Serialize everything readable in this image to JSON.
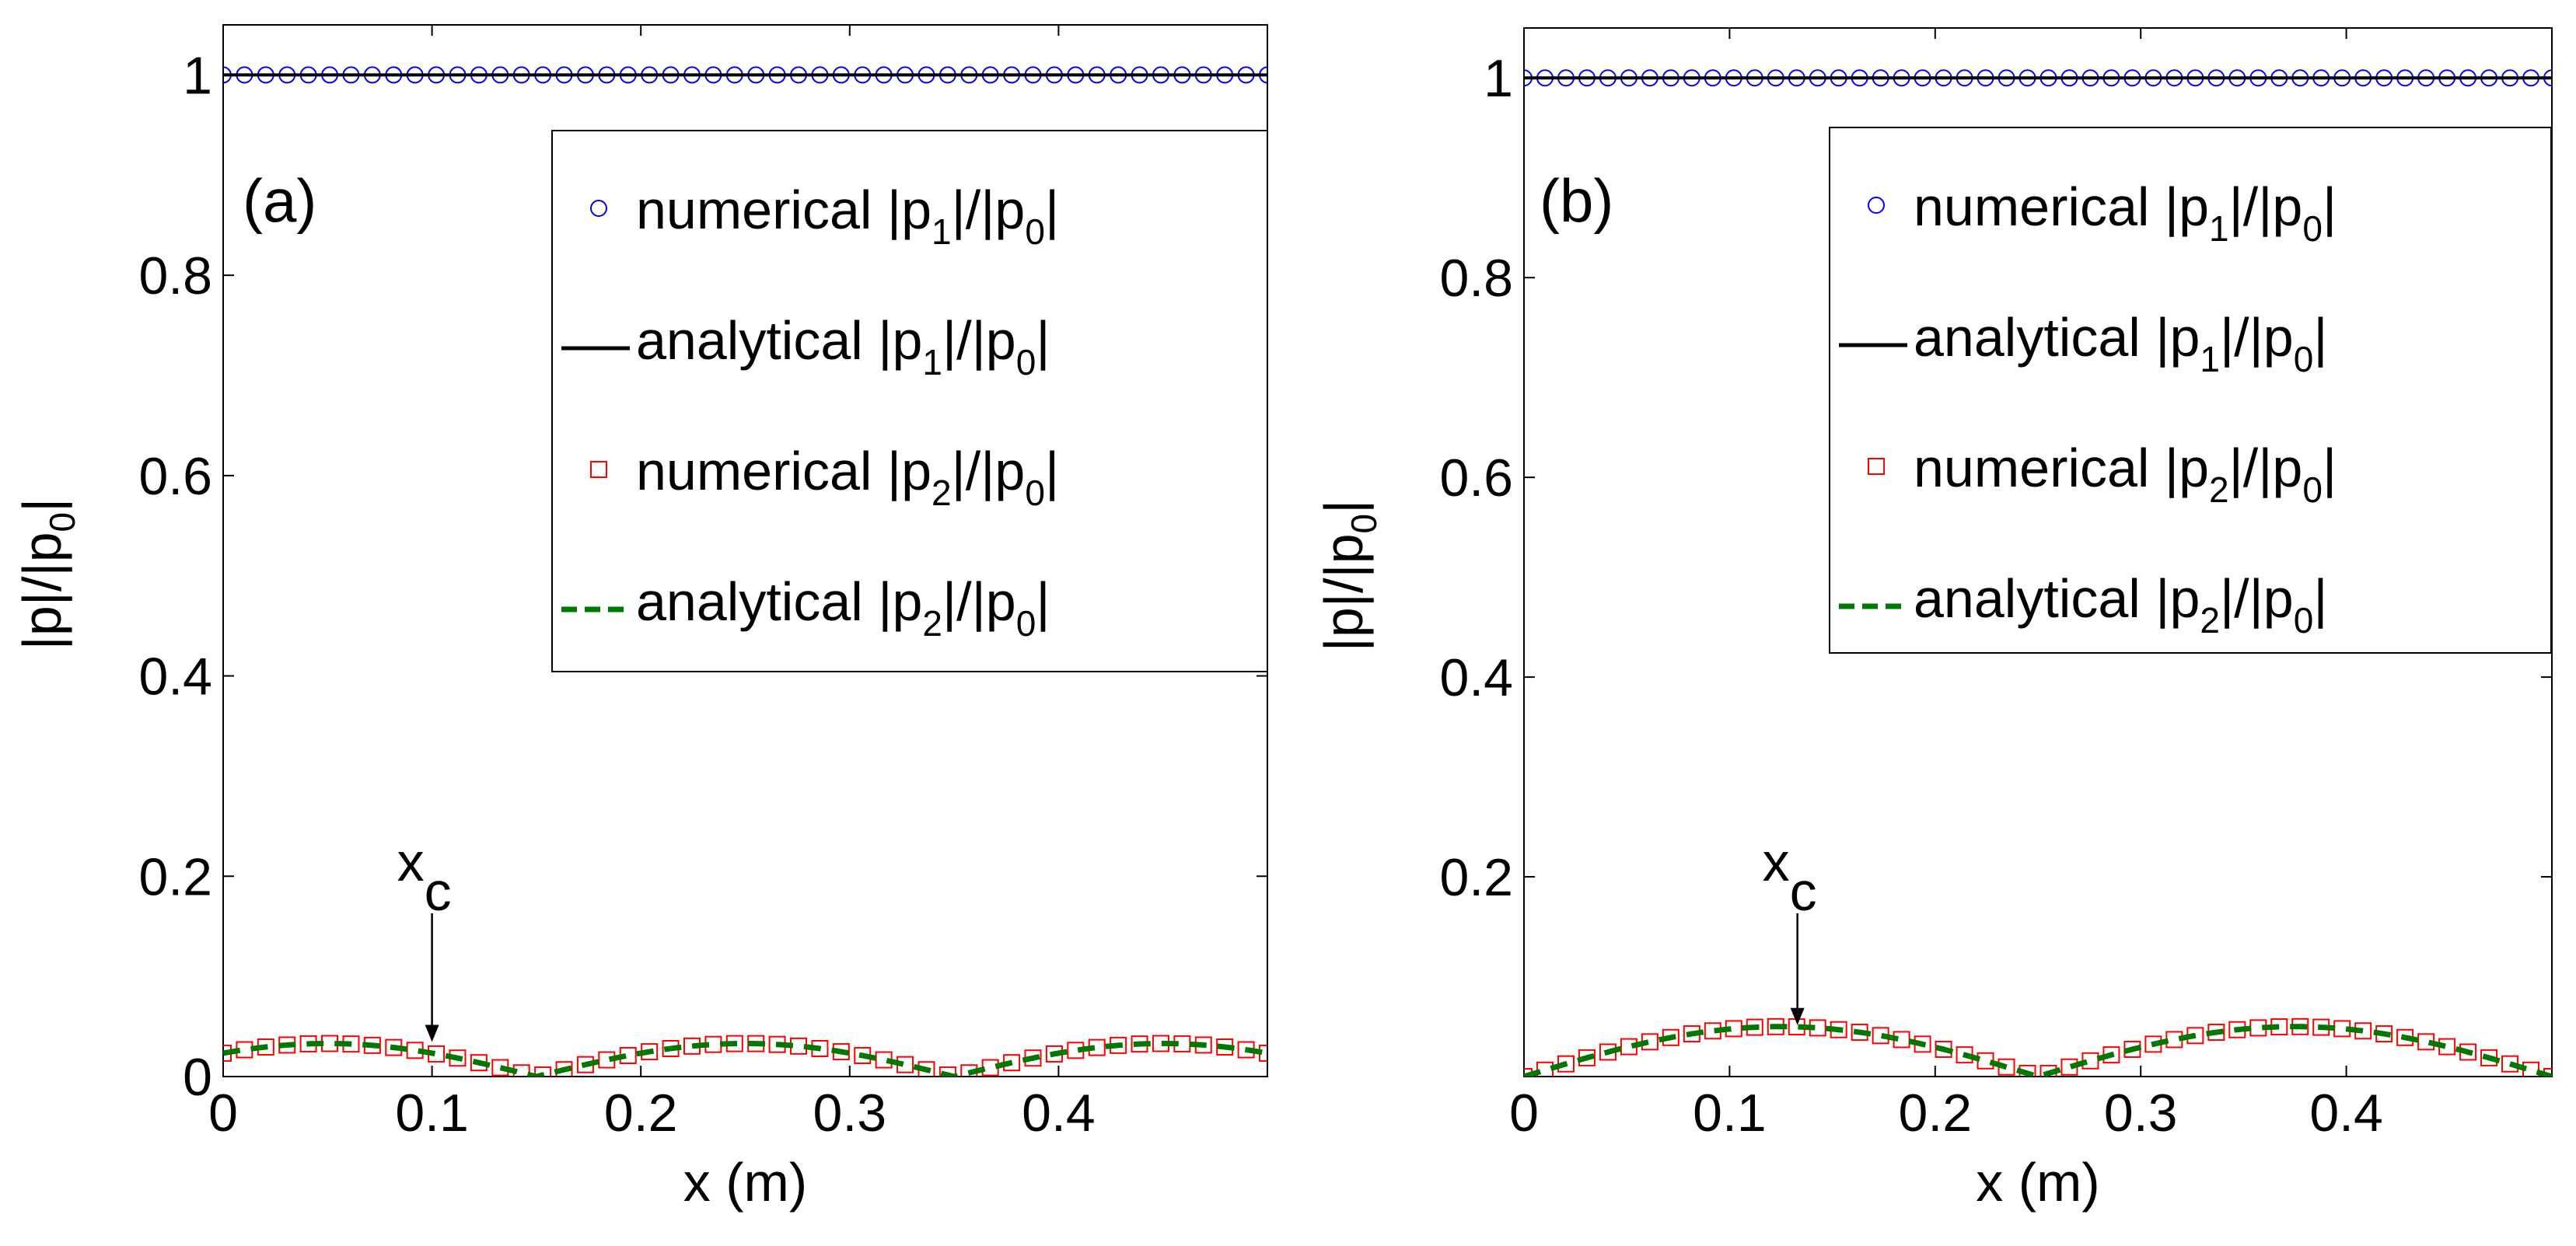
{
  "chart_data": [
    {
      "type": "line",
      "panel_label": "(a)",
      "xlabel": "x (m)",
      "ylabel": "|p|/|p0|",
      "xlim": [
        0,
        0.5
      ],
      "ylim": [
        0,
        1.05
      ],
      "xticks": [
        "0",
        "0.1",
        "0.2",
        "0.3",
        "0.4"
      ],
      "yticks": [
        "0",
        "0.2",
        "0.4",
        "0.6",
        "0.8",
        "1"
      ],
      "annotation": {
        "text": "x",
        "subscript": "c",
        "x": 0.1,
        "y": 0.033
      },
      "legend": [
        {
          "prefix": "numerical |p",
          "sub1": "1",
          "mid": "|/|p",
          "sub2": "0",
          "suffix": "|"
        },
        {
          "prefix": "analytical |p",
          "sub1": "1",
          "mid": "|/|p",
          "sub2": "0",
          "suffix": "|"
        },
        {
          "prefix": "numerical |p",
          "sub1": "2",
          "mid": "|/|p",
          "sub2": "0",
          "suffix": "|"
        },
        {
          "prefix": "analytical |p",
          "sub1": "2",
          "mid": "|/|p",
          "sub2": "0",
          "suffix": "|"
        }
      ],
      "series": [
        {
          "name": "numerical |p1|/|p0|",
          "style": "circle",
          "color": "#0000ff",
          "function": "constant",
          "value": 1.0
        },
        {
          "name": "analytical |p1|/|p0|",
          "style": "solid",
          "color": "#000000",
          "function": "constant",
          "value": 1.0
        },
        {
          "name": "numerical |p2|/|p0|",
          "style": "square",
          "color": "#ff0000",
          "function": "abs_sin",
          "amplitude": 0.033,
          "period": 0.2,
          "phase": 0.05
        },
        {
          "name": "analytical |p2|/|p0|",
          "style": "dashed",
          "color": "#007700",
          "function": "abs_sin",
          "amplitude": 0.033,
          "period": 0.2,
          "phase": 0.05
        }
      ]
    },
    {
      "type": "line",
      "panel_label": "(b)",
      "xlabel": "x (m)",
      "ylabel": "|p|/|p0|",
      "xlim": [
        0,
        0.5
      ],
      "ylim": [
        0,
        1.05
      ],
      "xticks": [
        "0",
        "0.1",
        "0.2",
        "0.3",
        "0.4"
      ],
      "yticks": [
        "0.2",
        "0.4",
        "0.6",
        "0.8",
        "1"
      ],
      "annotation": {
        "text": "x",
        "subscript": "c",
        "x": 0.133,
        "y": 0.05
      },
      "legend": [
        {
          "prefix": "numerical |p",
          "sub1": "1",
          "mid": "|/|p",
          "sub2": "0",
          "suffix": "|"
        },
        {
          "prefix": "analytical |p",
          "sub1": "1",
          "mid": "|/|p",
          "sub2": "0",
          "suffix": "|"
        },
        {
          "prefix": "numerical |p",
          "sub1": "2",
          "mid": "|/|p",
          "sub2": "0",
          "suffix": "|"
        },
        {
          "prefix": "analytical |p",
          "sub1": "2",
          "mid": "|/|p",
          "sub2": "0",
          "suffix": "|"
        }
      ],
      "series": [
        {
          "name": "numerical |p1|/|p0|",
          "style": "circle",
          "color": "#0000ff",
          "function": "constant",
          "value": 1.0
        },
        {
          "name": "analytical |p1|/|p0|",
          "style": "solid",
          "color": "#000000",
          "function": "constant",
          "value": 1.0
        },
        {
          "name": "numerical |p2|/|p0|",
          "style": "square",
          "color": "#ff0000",
          "function": "abs_sin",
          "amplitude": 0.05,
          "period": 0.25,
          "phase": 0.0
        },
        {
          "name": "analytical |p2|/|p0|",
          "style": "dashed",
          "color": "#007700",
          "function": "abs_sin",
          "amplitude": 0.05,
          "period": 0.25,
          "phase": 0.0
        }
      ]
    }
  ]
}
